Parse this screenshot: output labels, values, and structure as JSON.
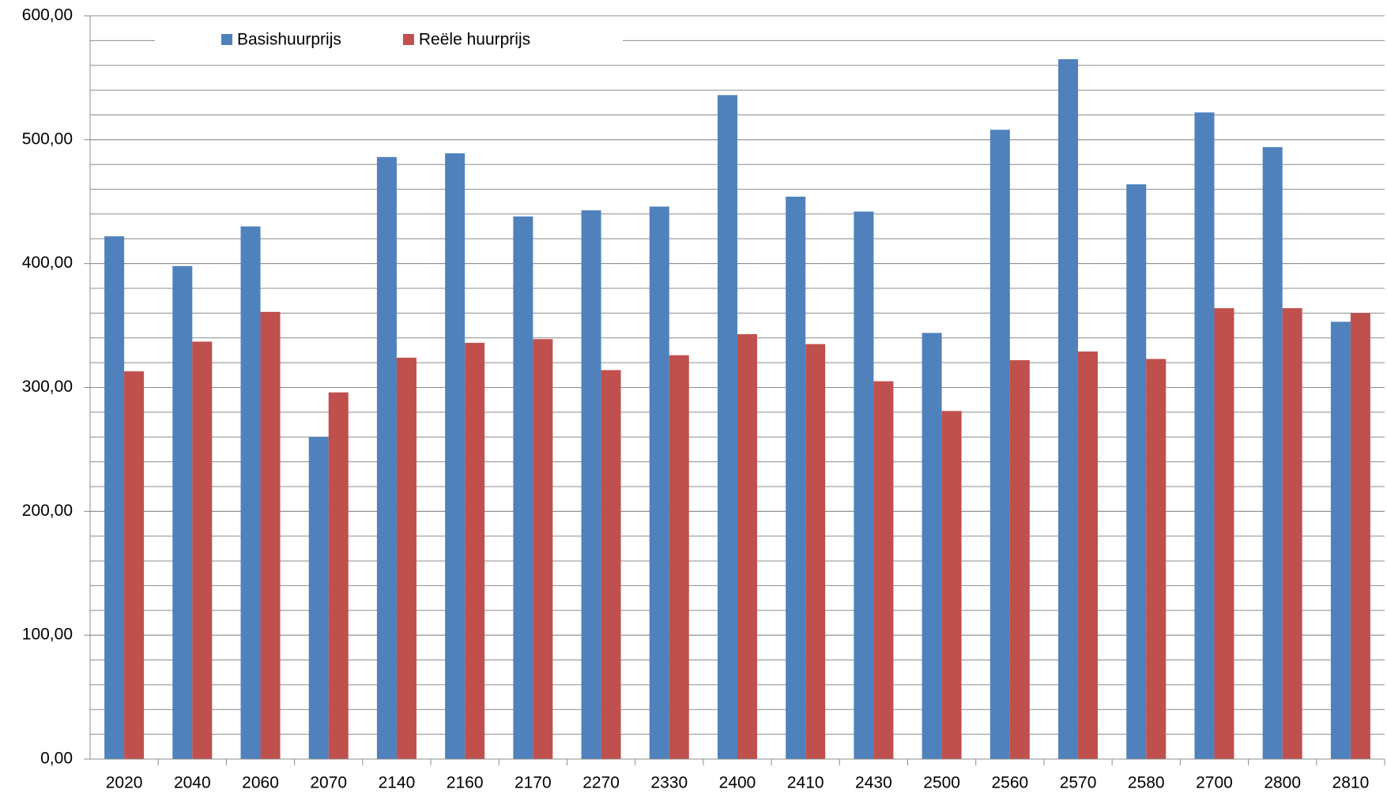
{
  "chart_data": {
    "type": "bar",
    "categories": [
      "2020",
      "2040",
      "2060",
      "2070",
      "2140",
      "2160",
      "2170",
      "2270",
      "2330",
      "2400",
      "2410",
      "2430",
      "2500",
      "2560",
      "2570",
      "2580",
      "2700",
      "2800",
      "2810"
    ],
    "series": [
      {
        "name": "Basishuurprijs",
        "color": "#4f81bd",
        "values": [
          422,
          398,
          430,
          260,
          486,
          489,
          438,
          443,
          446,
          536,
          454,
          442,
          344,
          508,
          565,
          464,
          522,
          494,
          353
        ]
      },
      {
        "name": "Reële huurprijs",
        "color": "#c0504d",
        "values": [
          313,
          337,
          361,
          296,
          324,
          336,
          339,
          314,
          326,
          343,
          335,
          305,
          281,
          322,
          329,
          323,
          364,
          364,
          360
        ]
      }
    ],
    "ylim": [
      0,
      600
    ],
    "yticks": [
      {
        "value": 0,
        "label": "0,00"
      },
      {
        "value": 100,
        "label": "100,00"
      },
      {
        "value": 200,
        "label": "200,00"
      },
      {
        "value": 300,
        "label": "300,00"
      },
      {
        "value": 400,
        "label": "400,00"
      },
      {
        "value": 500,
        "label": "500,00"
      },
      {
        "value": 600,
        "label": "600,00"
      }
    ],
    "minor_grid_step": 20,
    "grid": true,
    "legend": "top"
  }
}
